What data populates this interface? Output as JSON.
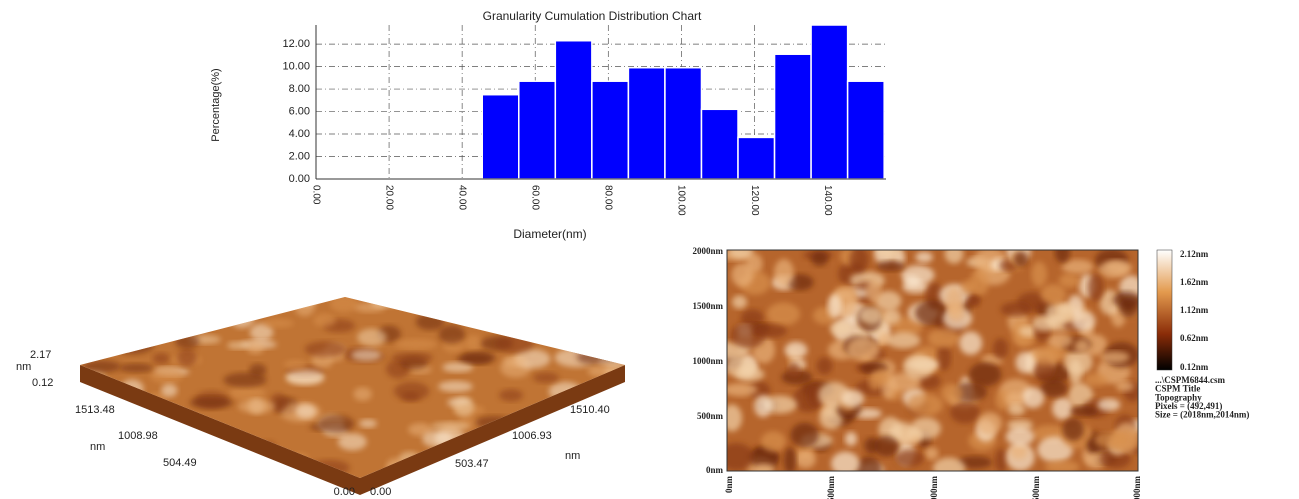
{
  "chart_data": {
    "type": "histogram",
    "title": "Granularity Cumulation Distribution  Chart",
    "x_label": "Diameter(nm)",
    "y_label": "Percentage(%)",
    "bins": [
      45.5,
      55.5,
      65.5,
      75.5,
      85.5,
      95.5,
      105.5,
      115.5,
      125.5,
      135.5,
      145.5,
      155.5
    ],
    "values": [
      7.5,
      8.7,
      12.3,
      8.7,
      9.9,
      9.9,
      6.2,
      3.7,
      11.1,
      13.7,
      8.7
    ],
    "color": "#0000ff",
    "xlim": [
      0,
      156
    ],
    "ylim": [
      0,
      13.7
    ],
    "xticks": [
      {
        "value": 0,
        "label": "0.00"
      },
      {
        "value": 20,
        "label": "20.00"
      },
      {
        "value": 40,
        "label": "40.00"
      },
      {
        "value": 60,
        "label": "60.00"
      },
      {
        "value": 80,
        "label": "80.00"
      },
      {
        "value": 100,
        "label": "100.00"
      },
      {
        "value": 120,
        "label": "120.00"
      },
      {
        "value": 140,
        "label": "140.00"
      }
    ],
    "yticks": [
      {
        "value": 0,
        "label": "0.00"
      },
      {
        "value": 2,
        "label": "2.00"
      },
      {
        "value": 4,
        "label": "4.00"
      },
      {
        "value": 6,
        "label": "6.00"
      },
      {
        "value": 8,
        "label": "8.00"
      },
      {
        "value": 10,
        "label": "10.00"
      },
      {
        "value": 12,
        "label": "12.00"
      }
    ],
    "grid": true
  },
  "surface_3d": {
    "z_max": "2.17",
    "z_unit": "nm",
    "z_min": "0.12",
    "left_axis": [
      "1513.48",
      "1008.98",
      "504.49",
      "0.00"
    ],
    "left_unit": "nm",
    "right_axis": [
      "0.00",
      "503.47",
      "1006.93",
      "1510.40"
    ],
    "right_unit": "nm"
  },
  "image_2d": {
    "y_labels": [
      "2000nm",
      "1500nm",
      "1000nm",
      "500nm",
      "0nm"
    ],
    "x_labels": [
      "0nm",
      "500nm",
      "1000nm",
      "1500nm",
      "2000nm"
    ],
    "colorbar_labels": [
      "2.12nm",
      "1.62nm",
      "1.12nm",
      "0.62nm",
      "0.12nm"
    ],
    "info": [
      "...\\CSPM6844.csm",
      "CSPM Title",
      "Topography",
      "Pixels = (492,491)",
      "Size = (2018nm,2014nm)"
    ]
  }
}
